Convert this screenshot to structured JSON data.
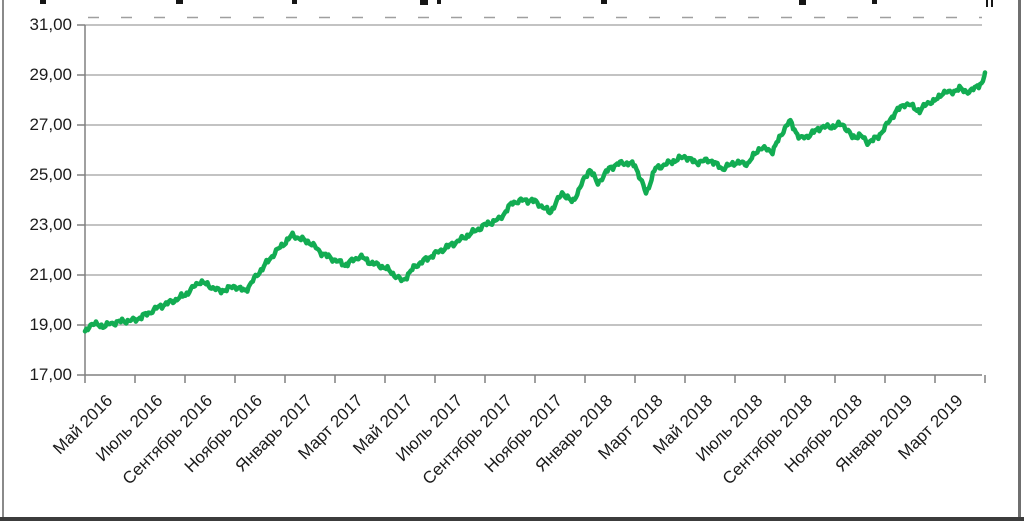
{
  "page": {
    "background": "#ffffff"
  },
  "artifacts": {
    "top_right_glyph": "‖"
  },
  "chart_data": {
    "type": "line",
    "title": "",
    "grid": "horizontal",
    "legend": "none",
    "ylim": [
      17,
      31
    ],
    "y_tick_step": 2,
    "y_tick_labels": [
      "31,00",
      "29,00",
      "27,00",
      "25,00",
      "23,00",
      "21,00",
      "19,00",
      "17,00"
    ],
    "x_tick_labels": [
      "Май 2016",
      "Июль 2016",
      "Сентябрь 2016",
      "Ноябрь 2016",
      "Январь 2017",
      "Март 2017",
      "Май 2017",
      "Июль 2017",
      "Сентябрь 2017",
      "Ноябрь 2017",
      "Январь 2018",
      "Март 2018",
      "Май 2018",
      "Июль 2018",
      "Сентябрь 2018",
      "Ноябрь 2018",
      "Январь 2019",
      "Март 2019"
    ],
    "x_months_span": 36,
    "x_axis_start": "Май 2016",
    "x_axis_end": "Май 2019",
    "line_color": "#12AC52",
    "gridline_color": "#9f9f9f",
    "axis_color": "#808080",
    "label_color": "#1c1c1c",
    "series": [
      {
        "name": "",
        "points_unit": "[months_from_2016_05, value]",
        "points": [
          [
            0,
            18.75
          ],
          [
            0.25,
            19.05
          ],
          [
            0.8,
            18.95
          ],
          [
            1,
            19.05
          ],
          [
            1.5,
            19.15
          ],
          [
            2,
            19.2
          ],
          [
            2.5,
            19.45
          ],
          [
            3,
            19.75
          ],
          [
            3.5,
            19.95
          ],
          [
            4,
            20.2
          ],
          [
            4.6,
            20.75
          ],
          [
            5.1,
            20.5
          ],
          [
            5.4,
            20.35
          ],
          [
            6,
            20.55
          ],
          [
            6.4,
            20.35
          ],
          [
            7,
            21.15
          ],
          [
            7.6,
            21.9
          ],
          [
            8.3,
            22.6
          ],
          [
            8.6,
            22.45
          ],
          [
            9,
            22.3
          ],
          [
            9.5,
            21.85
          ],
          [
            10,
            21.6
          ],
          [
            10.4,
            21.4
          ],
          [
            11,
            21.75
          ],
          [
            11.4,
            21.5
          ],
          [
            12,
            21.3
          ],
          [
            12.7,
            20.75
          ],
          [
            13.2,
            21.35
          ],
          [
            14,
            21.85
          ],
          [
            15,
            22.4
          ],
          [
            16,
            23.0
          ],
          [
            16.6,
            23.25
          ],
          [
            17.1,
            23.9
          ],
          [
            17.6,
            24.0
          ],
          [
            18,
            23.95
          ],
          [
            18.6,
            23.5
          ],
          [
            19.1,
            24.3
          ],
          [
            19.5,
            23.9
          ],
          [
            20,
            24.9
          ],
          [
            20.2,
            25.25
          ],
          [
            20.5,
            24.65
          ],
          [
            21,
            25.3
          ],
          [
            21.5,
            25.5
          ],
          [
            22,
            25.4
          ],
          [
            22.45,
            24.25
          ],
          [
            22.8,
            25.25
          ],
          [
            23.4,
            25.5
          ],
          [
            24,
            25.75
          ],
          [
            24.4,
            25.5
          ],
          [
            25,
            25.6
          ],
          [
            25.5,
            25.25
          ],
          [
            26,
            25.5
          ],
          [
            26.5,
            25.45
          ],
          [
            27,
            26.1
          ],
          [
            27.5,
            25.95
          ],
          [
            28,
            26.9
          ],
          [
            28.2,
            27.15
          ],
          [
            28.6,
            26.45
          ],
          [
            29,
            26.6
          ],
          [
            29.4,
            26.9
          ],
          [
            30,
            26.95
          ],
          [
            30.3,
            27.05
          ],
          [
            30.7,
            26.5
          ],
          [
            31,
            26.6
          ],
          [
            31.3,
            26.3
          ],
          [
            31.7,
            26.5
          ],
          [
            32,
            26.9
          ],
          [
            32.4,
            27.5
          ],
          [
            32.8,
            27.85
          ],
          [
            33,
            27.8
          ],
          [
            33.4,
            27.55
          ],
          [
            33.7,
            27.9
          ],
          [
            34,
            27.95
          ],
          [
            34.3,
            28.3
          ],
          [
            34.6,
            28.3
          ],
          [
            35,
            28.45
          ],
          [
            35.4,
            28.3
          ],
          [
            35.7,
            28.6
          ],
          [
            35.9,
            28.65
          ],
          [
            36,
            29.1
          ]
        ]
      }
    ]
  }
}
